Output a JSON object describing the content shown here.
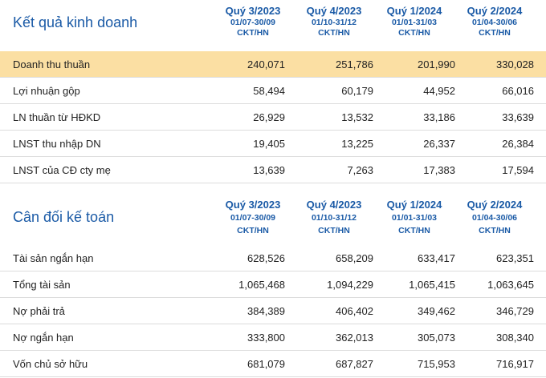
{
  "income": {
    "title": "Kết quả kinh doanh",
    "columns": [
      {
        "quarter": "Quý 3/2023",
        "period": "01/07-30/09",
        "type": "CKT/HN"
      },
      {
        "quarter": "Quý 4/2023",
        "period": "01/10-31/12",
        "type": "CKT/HN"
      },
      {
        "quarter": "Quý 1/2024",
        "period": "01/01-31/03",
        "type": "CKT/HN"
      },
      {
        "quarter": "Quý 2/2024",
        "period": "01/04-30/06",
        "type": "CKT/HN"
      }
    ],
    "rows": [
      {
        "label": "Doanh thu thuần",
        "values": [
          "240,071",
          "251,786",
          "201,990",
          "330,028"
        ]
      },
      {
        "label": "Lợi nhuận gộp",
        "values": [
          "58,494",
          "60,179",
          "44,952",
          "66,016"
        ]
      },
      {
        "label": "LN thuần từ HĐKD",
        "values": [
          "26,929",
          "13,532",
          "33,186",
          "33,639"
        ]
      },
      {
        "label": "LNST thu nhập DN",
        "values": [
          "19,405",
          "13,225",
          "26,337",
          "26,384"
        ]
      },
      {
        "label": "LNST của CĐ cty mẹ",
        "values": [
          "13,639",
          "7,263",
          "17,383",
          "17,594"
        ]
      }
    ]
  },
  "balance": {
    "title": "Cân đối kế toán",
    "columns": [
      {
        "quarter": "Quý 3/2023",
        "period": "01/07-30/09",
        "type": "CKT/HN"
      },
      {
        "quarter": "Quý 4/2023",
        "period": "01/10-31/12",
        "type": "CKT/HN"
      },
      {
        "quarter": "Quý 1/2024",
        "period": "01/01-31/03",
        "type": "CKT/HN"
      },
      {
        "quarter": "Quý 2/2024",
        "period": "01/04-30/06",
        "type": "CKT/HN"
      }
    ],
    "rows": [
      {
        "label": "Tài sản ngắn hạn",
        "values": [
          "628,526",
          "658,209",
          "633,417",
          "623,351"
        ]
      },
      {
        "label": "Tổng tài sản",
        "values": [
          "1,065,468",
          "1,094,229",
          "1,065,415",
          "1,063,645"
        ]
      },
      {
        "label": "Nợ phải trả",
        "values": [
          "384,389",
          "406,402",
          "349,462",
          "346,729"
        ]
      },
      {
        "label": "Nợ ngắn hạn",
        "values": [
          "333,800",
          "362,013",
          "305,073",
          "308,340"
        ]
      },
      {
        "label": "Vốn chủ sở hữu",
        "values": [
          "681,079",
          "687,827",
          "715,953",
          "716,917"
        ]
      }
    ]
  },
  "colors": {
    "accent": "#1a5aa6",
    "highlight": "#fbdfa3",
    "divider": "#dcdcdc"
  }
}
